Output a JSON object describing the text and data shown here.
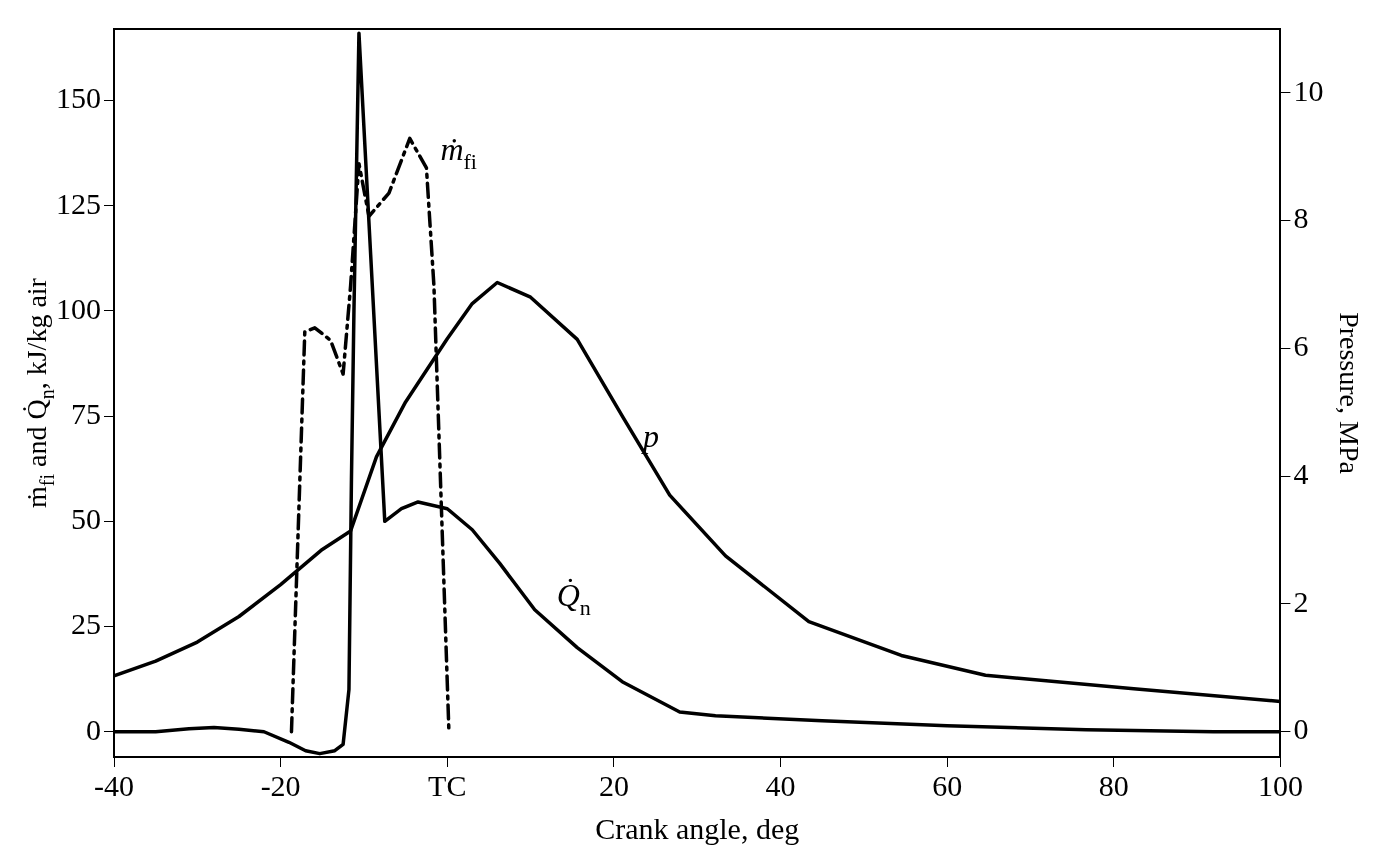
{
  "chart_data": {
    "type": "line",
    "xlabel": "Crank angle, deg",
    "ylabel": "ṁ$_{fi}$ and Q̇$_{n}$, kJ/kg air",
    "y2label": "Pressure, MPa",
    "xlim": [
      -40,
      100
    ],
    "xticks": [
      -40,
      -20,
      {
        "value": 0,
        "label": "TC"
      },
      20,
      40,
      60,
      80,
      100
    ],
    "ylim": [
      -6,
      167
    ],
    "yticks": [
      0,
      25,
      50,
      75,
      100,
      125,
      150
    ],
    "y2lim": [
      -0.4,
      11
    ],
    "y2ticks": [
      0,
      2,
      4,
      6,
      8,
      10
    ],
    "grid": false,
    "legend": false,
    "marker": "none",
    "series": [
      {
        "name": "ṁ$_{fi}$",
        "color": "#000000",
        "line_style": "dashed",
        "x": [
          -18.7,
          -17.1,
          -15.9,
          -14,
          -12.5,
          -11.6,
          -10.6,
          -9.4,
          -7,
          -4.5,
          -2.5,
          -1.6,
          0.2
        ],
        "values": [
          0,
          95,
          96,
          93,
          85,
          106,
          135,
          122.5,
          128,
          141,
          134,
          106,
          0
        ]
      },
      {
        "name": "Q̇$_{n}$",
        "color": "#000000",
        "line_style": "solid",
        "x": [
          -40,
          -35,
          -31,
          -28,
          -25,
          -22,
          -19,
          -17,
          -15.3,
          -13.5,
          -12.5,
          -11.8,
          -11.5,
          -11.2,
          -10.6,
          -7.5,
          -5.5,
          -3.5,
          0,
          3,
          6.3,
          10.5,
          15.6,
          21,
          27.9,
          32.2,
          45,
          60,
          76.7,
          92,
          100
        ],
        "values": [
          0,
          0,
          0.7,
          1,
          0.6,
          0,
          -2.5,
          -4.5,
          -5.2,
          -4.5,
          -3,
          10,
          60,
          100,
          166,
          50,
          53,
          54.6,
          53,
          48,
          40,
          29,
          20,
          11.9,
          4.7,
          3.8,
          2.6,
          1.4,
          0.5,
          0,
          0
        ]
      },
      {
        "name": "p",
        "color": "#000000",
        "line_style": "solid",
        "axis": "y2",
        "x": [
          -40,
          -35,
          -30,
          -25,
          -20,
          -15,
          -11.6,
          -8.5,
          -5,
          0,
          3,
          6,
          10,
          15.6,
          21.1,
          26.7,
          33.4,
          43.4,
          54.5,
          64.6,
          82.4,
          100
        ],
        "values": [
          0.87,
          1.1,
          1.4,
          1.8,
          2.3,
          2.85,
          3.14,
          4.3,
          5.16,
          6.15,
          6.7,
          7.03,
          6.8,
          6.14,
          4.92,
          3.7,
          2.75,
          1.72,
          1.19,
          0.88,
          0.67,
          0.47
        ]
      }
    ]
  }
}
